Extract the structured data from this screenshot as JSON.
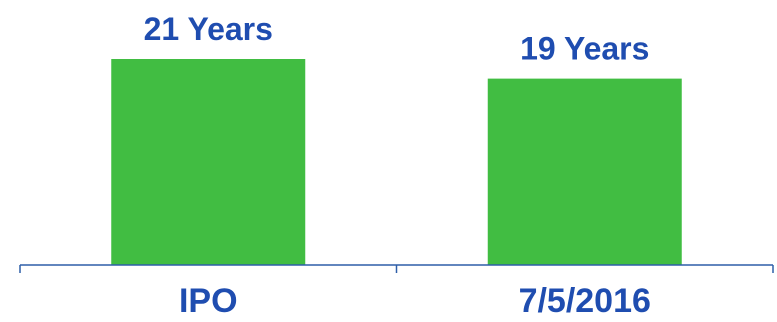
{
  "chart_data": {
    "type": "bar",
    "categories": [
      "IPO",
      "7/5/2016"
    ],
    "values": [
      21,
      19
    ],
    "data_labels": [
      "21 Years",
      "19 Years"
    ],
    "title": "",
    "xlabel": "",
    "ylabel": "",
    "ylim": [
      0,
      21
    ],
    "grid": false,
    "legend": "none"
  },
  "colors": {
    "bar": "#41bd42",
    "label_text": "#1f4db0",
    "axis": "#2e5fa8"
  }
}
